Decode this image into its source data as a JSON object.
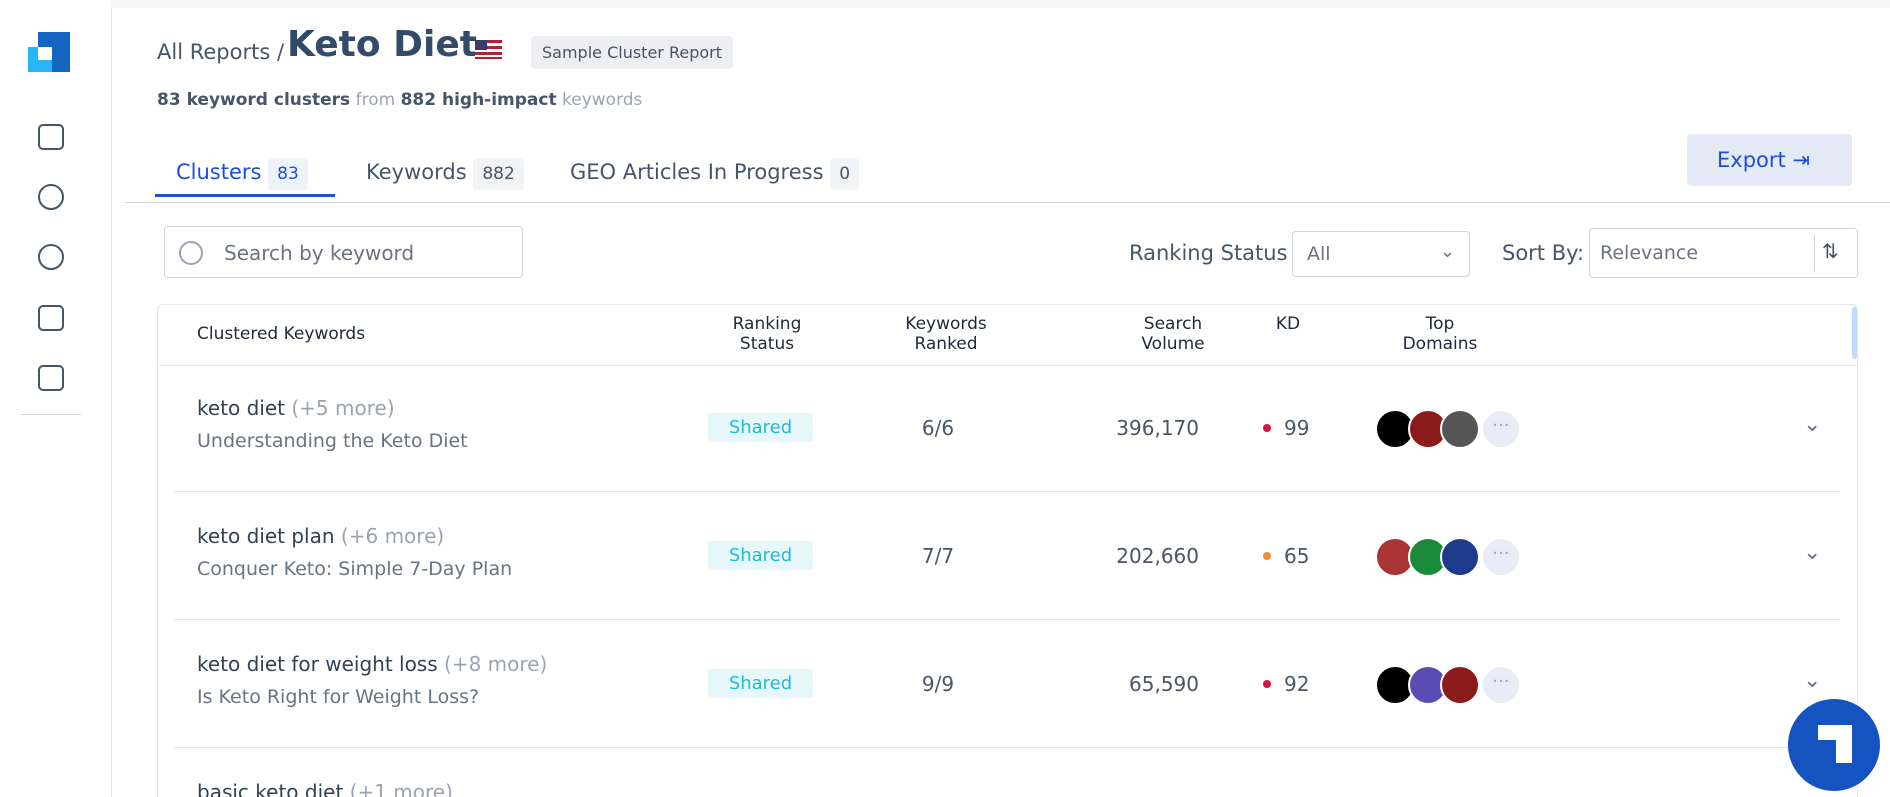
{
  "header": {
    "breadcrumb": "All Reports /",
    "title": "Keto Diet",
    "badge": "Sample Cluster Report"
  },
  "summary": {
    "clusters": "83 keyword clusters",
    "from": "from",
    "keywords_count": "882 high-impact",
    "keywords_word": "keywords"
  },
  "tabs": [
    {
      "label": "Clusters",
      "count": "83"
    },
    {
      "label": "Keywords",
      "count": "882"
    },
    {
      "label": "GEO Articles In Progress",
      "count": "0"
    }
  ],
  "export": "Export",
  "search_placeholder": "Search by keyword",
  "filters": {
    "ranking_label": "Ranking Status",
    "ranking_value": "All",
    "sort_label": "Sort By:",
    "sort_value": "Relevance"
  },
  "table": {
    "columns": [
      "Clustered Keywords",
      "Ranking Status",
      "Keywords Ranked",
      "Search Volume",
      "KD",
      "Top Domains"
    ],
    "rows": [
      {
        "keyword": "keto diet",
        "more": "(+5 more)",
        "subtitle": "Understanding the Keto Diet",
        "status": "Shared",
        "ranked": "6/6",
        "volume": "396,170",
        "kd": "99"
      },
      {
        "keyword": "keto diet plan",
        "more": "(+6 more)",
        "subtitle": "Conquer Keto: Simple 7-Day Plan",
        "status": "Shared",
        "ranked": "7/7",
        "volume": "202,660",
        "kd": "65"
      },
      {
        "keyword": "keto diet for weight loss",
        "more": "(+8 more)",
        "subtitle": "Is Keto Right for Weight Loss?",
        "status": "Shared",
        "ranked": "9/9",
        "volume": "65,590",
        "kd": "92"
      },
      {
        "keyword": "basic keto diet",
        "more": "(+1 more)"
      }
    ]
  }
}
